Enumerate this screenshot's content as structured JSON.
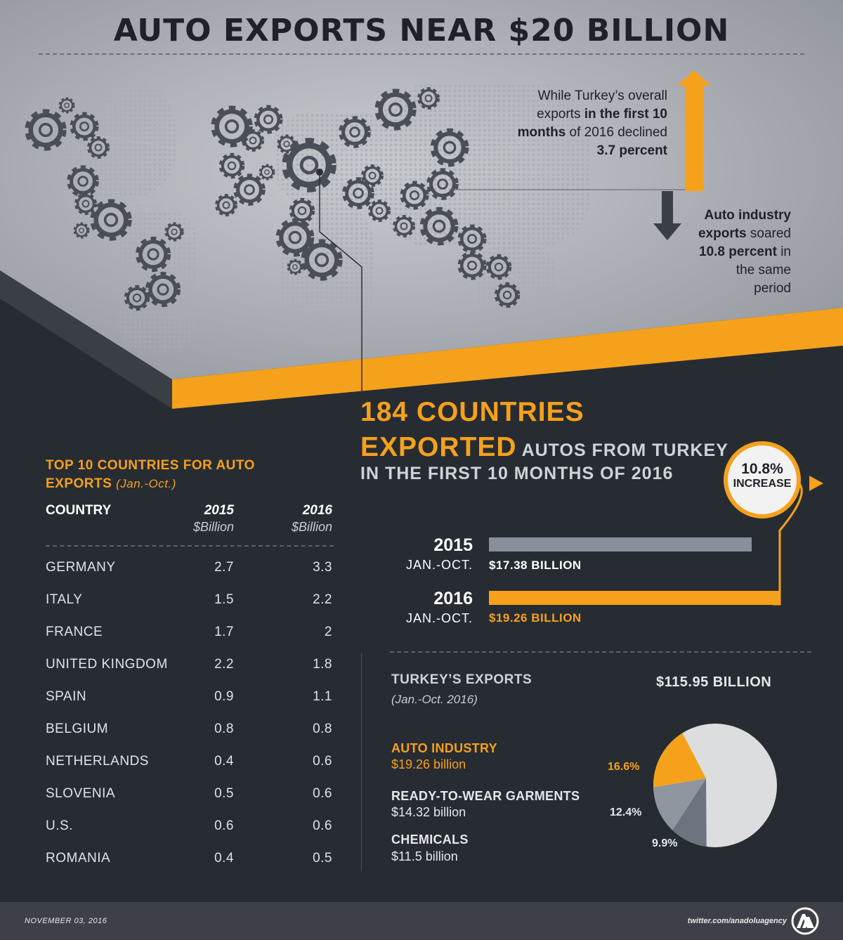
{
  "title": "AUTO EXPORTS NEAR $20 BILLION",
  "overall_note": {
    "line1": "While Turkey’s overall",
    "line2_a": "exports ",
    "line2_b": "in the first 10",
    "line3_a": "months",
    "line3_b": " of 2016 declined",
    "line4": "3.7 percent"
  },
  "auto_note": {
    "line1": "Auto industry",
    "line2_a": "exports",
    "line2_b": " soared",
    "line3_a": "10.8 percent",
    "line3_b": " in",
    "line4": "the same",
    "line5": "period"
  },
  "headline": {
    "line1": "184 COUNTRIES",
    "line2_a": "EXPORTED",
    "line2_b": " AUTOS FROM TURKEY",
    "line3": "IN THE FIRST 10 MONTHS OF 2016"
  },
  "badge": {
    "value": "10.8%",
    "label": "INCREASE"
  },
  "bars": [
    {
      "year": "2015",
      "period": "JAN.-OCT.",
      "value": 17.38,
      "label": "$17.38 BILLION",
      "color": "#8a909a",
      "label_color": "#ffffff"
    },
    {
      "year": "2016",
      "period": "JAN.-OCT.",
      "value": 19.26,
      "label": "$19.26 BILLION",
      "color": "#f5a11c",
      "label_color": "#f5a11c"
    }
  ],
  "table": {
    "title": "TOP 10 COUNTRIES FOR AUTO EXPORTS",
    "title_note": "(Jan.-Oct.)",
    "headers": {
      "country": "COUNTRY",
      "y2015": "2015",
      "y2016": "2016",
      "unit": "$Billion"
    },
    "rows": [
      {
        "country": "GERMANY",
        "v2015": "2.7",
        "v2016": "3.3"
      },
      {
        "country": "ITALY",
        "v2015": "1.5",
        "v2016": "2.2"
      },
      {
        "country": "FRANCE",
        "v2015": "1.7",
        "v2016": "2"
      },
      {
        "country": "UNITED KINGDOM",
        "v2015": "2.2",
        "v2016": "1.8"
      },
      {
        "country": "SPAIN",
        "v2015": "0.9",
        "v2016": "1.1"
      },
      {
        "country": "BELGIUM",
        "v2015": "0.8",
        "v2016": "0.8"
      },
      {
        "country": "NETHERLANDS",
        "v2015": "0.4",
        "v2016": "0.6"
      },
      {
        "country": "SLOVENIA",
        "v2015": "0.5",
        "v2016": "0.6"
      },
      {
        "country": "U.S.",
        "v2015": "0.6",
        "v2016": "0.6"
      },
      {
        "country": "ROMANIA",
        "v2015": "0.4",
        "v2016": "0.5"
      }
    ]
  },
  "exports": {
    "title": "TURKEY’S EXPORTS",
    "subtitle": "(Jan.-Oct. 2016)",
    "total": "$115.95 BILLION",
    "categories": [
      {
        "name": "AUTO INDUSTRY",
        "value": "$19.26 billion",
        "share": "16.6%",
        "color": "#f5a11c"
      },
      {
        "name": "READY-TO-WEAR GARMENTS",
        "value": "$14.32 billion",
        "share": "12.4%",
        "color": "#8f969f"
      },
      {
        "name": "CHEMICALS",
        "value": "$11.5 billion",
        "share": "9.9%",
        "color": "#6c757f"
      }
    ]
  },
  "chart_data": [
    {
      "type": "bar",
      "orientation": "horizontal",
      "categories": [
        "2015 JAN.-OCT.",
        "2016 JAN.-OCT."
      ],
      "values": [
        17.38,
        19.26
      ],
      "unit": "$ billion"
    },
    {
      "type": "pie",
      "categories": [
        "AUTO INDUSTRY",
        "READY-TO-WEAR GARMENTS",
        "CHEMICALS"
      ],
      "values": [
        16.6,
        12.4,
        9.9
      ],
      "rest_color": "#dcdddf"
    },
    {
      "type": "table",
      "columns": [
        "COUNTRY",
        "2015",
        "2016"
      ],
      "rows": [
        [
          "GERMANY",
          2.7,
          3.3
        ],
        [
          "ITALY",
          1.5,
          2.2
        ],
        [
          "FRANCE",
          1.7,
          2
        ],
        [
          "UNITED KINGDOM",
          2.2,
          1.8
        ],
        [
          "SPAIN",
          0.9,
          1.1
        ],
        [
          "BELGIUM",
          0.8,
          0.8
        ],
        [
          "NETHERLANDS",
          0.4,
          0.6
        ],
        [
          "SLOVENIA",
          0.5,
          0.6
        ],
        [
          "U.S.",
          0.6,
          0.6
        ],
        [
          "ROMANIA",
          0.4,
          0.5
        ]
      ]
    }
  ],
  "footer": {
    "date": "NOVEMBER 03, 2016",
    "twitter": "twitter.com/anadoluagency",
    "logo_icon": "aa-logo-icon"
  },
  "colors": {
    "accent": "#f5a11c",
    "background": "#272c33",
    "gray_bar": "#8a909a"
  }
}
